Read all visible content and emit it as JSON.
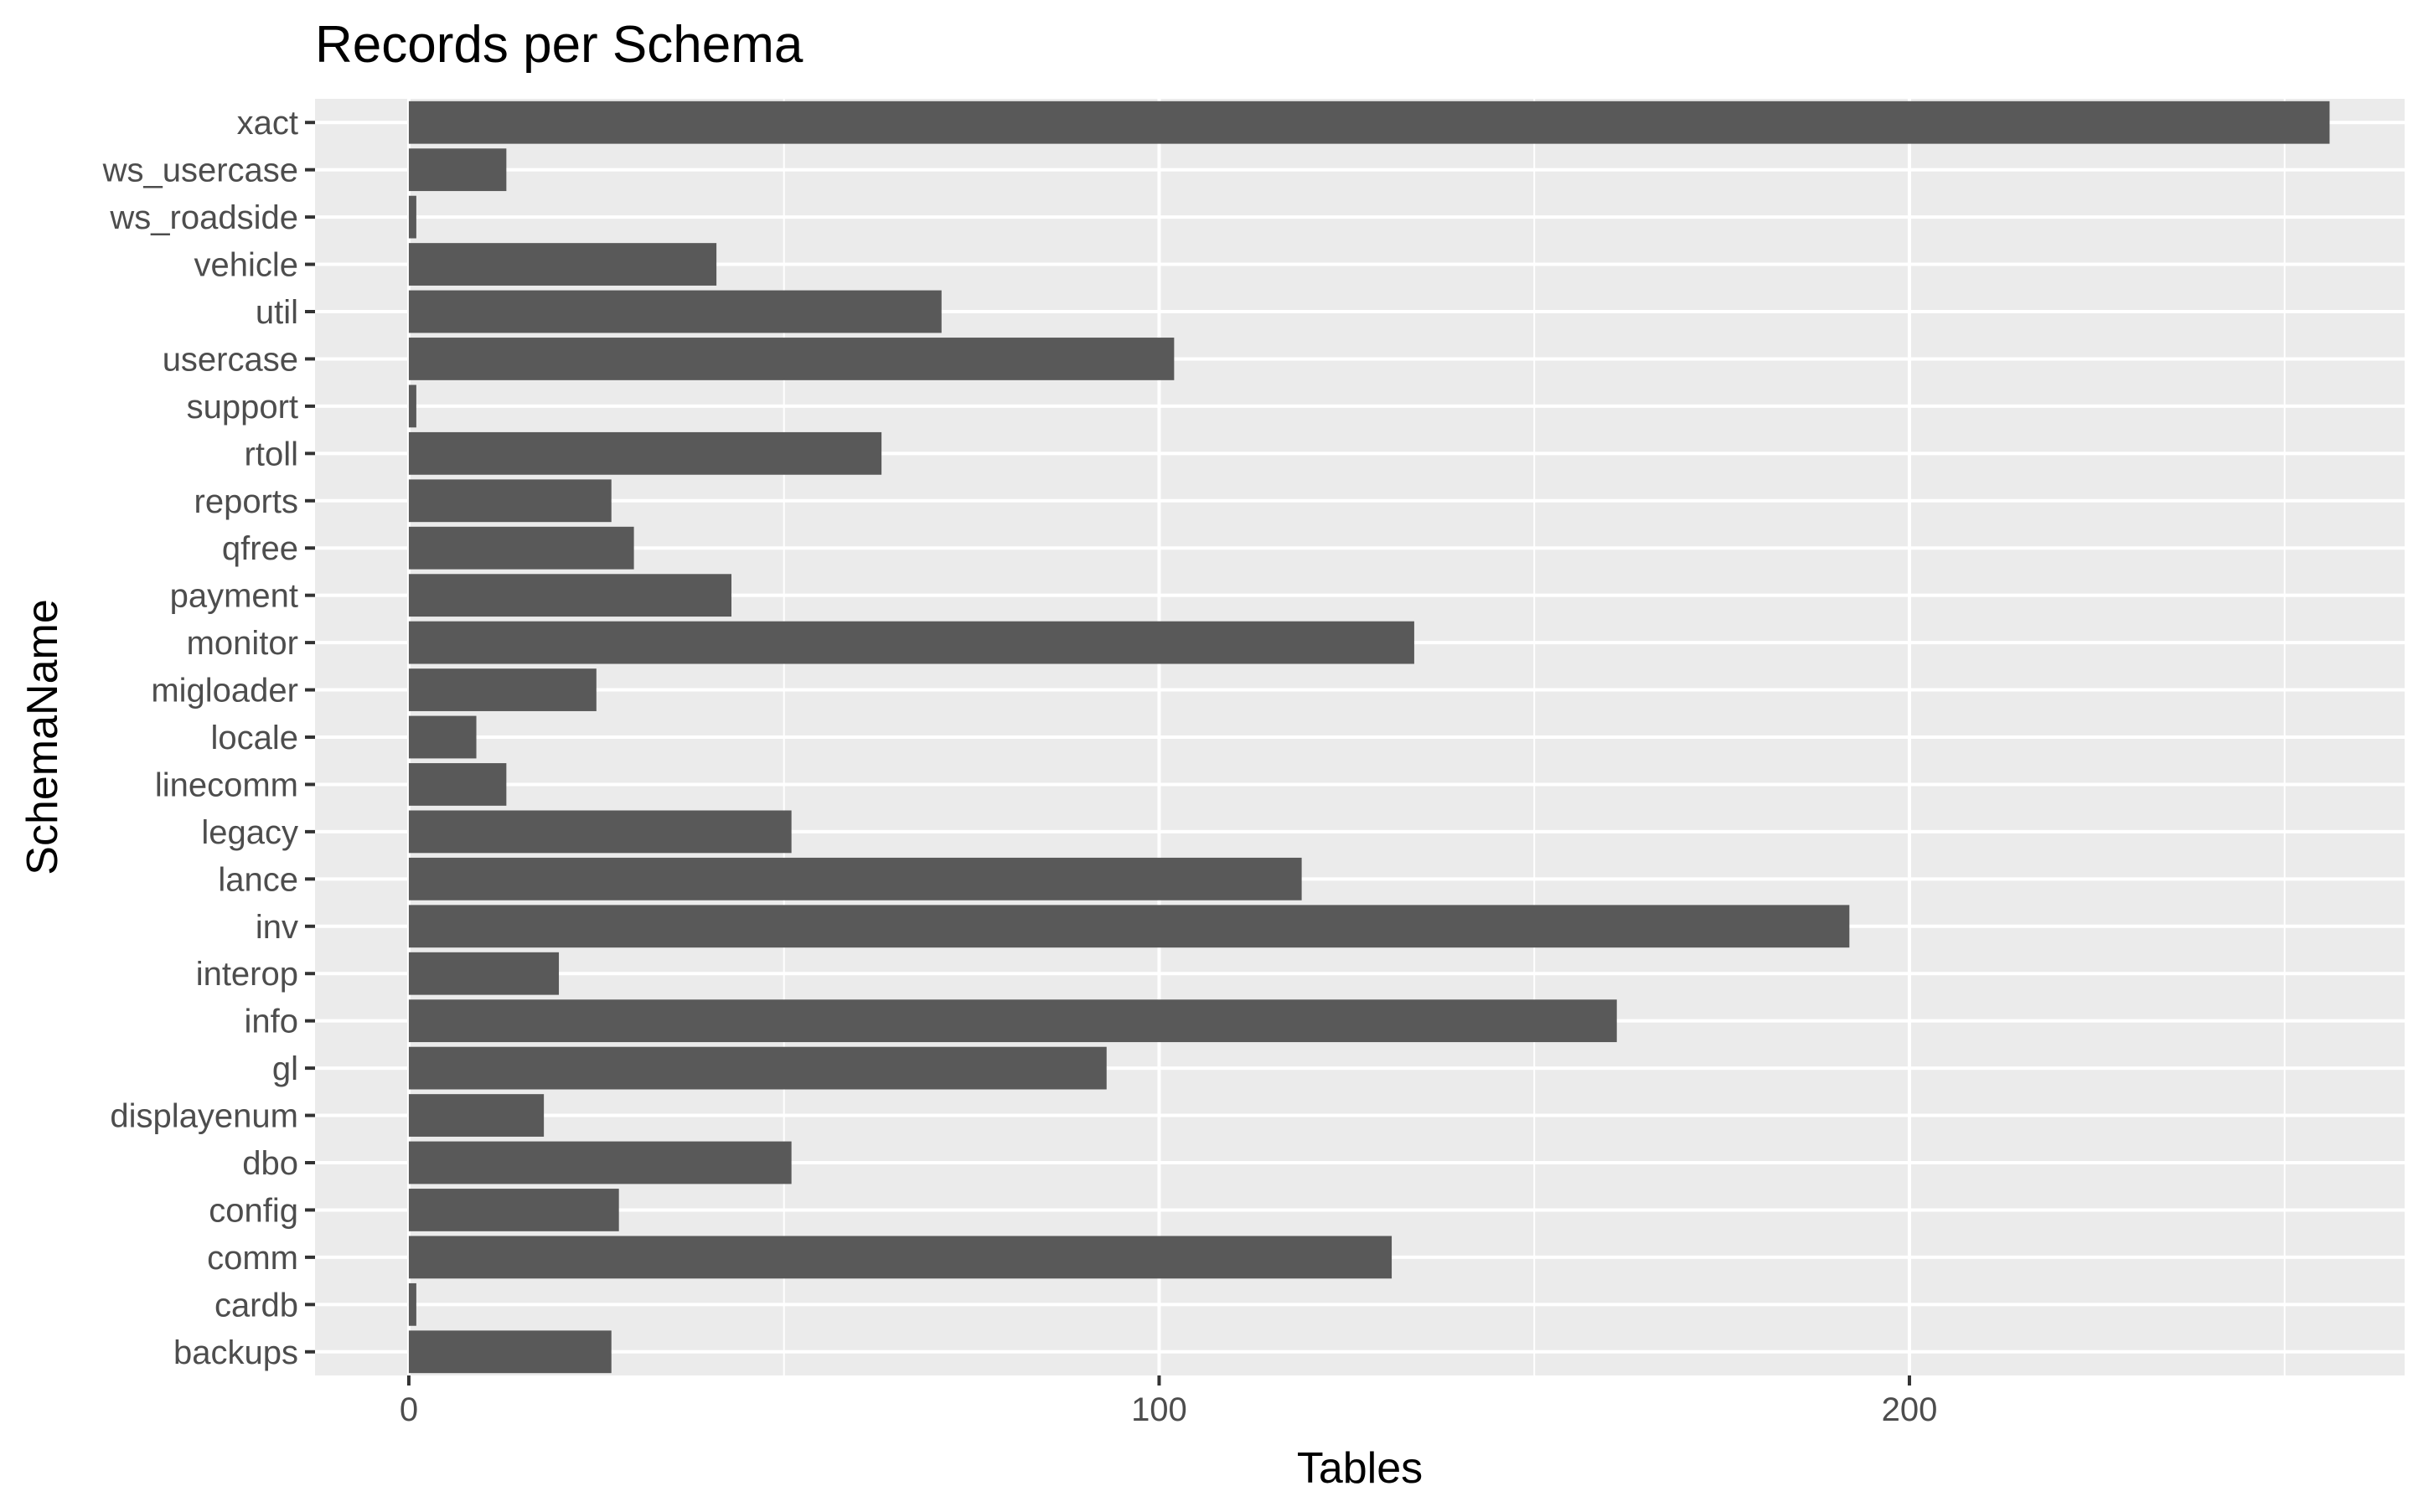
{
  "chart_data": {
    "type": "bar",
    "orientation": "horizontal",
    "title": "Records per Schema",
    "xlabel": "Tables",
    "ylabel": "SchemaName",
    "xlim": [
      -12.5,
      266
    ],
    "x_ticks": [
      0,
      100,
      200
    ],
    "grid": true,
    "legend": "none",
    "colors": {
      "bar": "#595959",
      "panel": "#ebebeb",
      "grid": "#ffffff",
      "tick_text": "#4d4d4d"
    },
    "categories": [
      "xact",
      "ws_usercase",
      "ws_roadside",
      "vehicle",
      "util",
      "usercase",
      "support",
      "rtoll",
      "reports",
      "qfree",
      "payment",
      "monitor",
      "migloader",
      "locale",
      "linecomm",
      "legacy",
      "lance",
      "inv",
      "interop",
      "info",
      "gl",
      "displayenum",
      "dbo",
      "config",
      "comm",
      "cardb",
      "backups"
    ],
    "values": [
      256,
      13,
      1,
      41,
      71,
      102,
      1,
      63,
      27,
      30,
      43,
      134,
      25,
      9,
      13,
      51,
      119,
      192,
      20,
      161,
      93,
      18,
      51,
      28,
      131,
      1,
      27
    ]
  }
}
